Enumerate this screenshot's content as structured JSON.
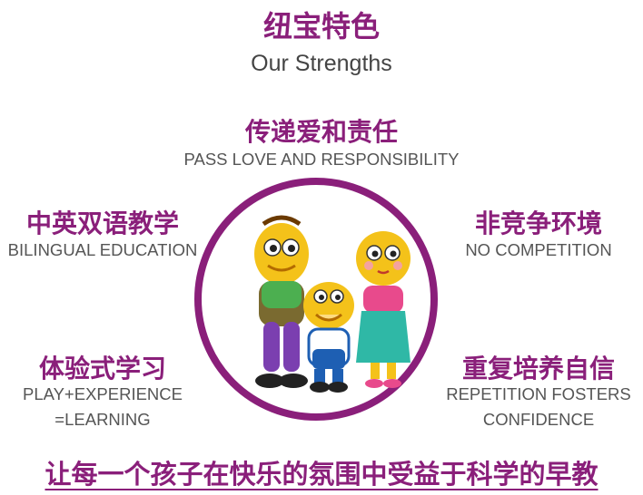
{
  "header": {
    "title_cn": "纽宝特色",
    "title_en": "Our Strengths"
  },
  "features": {
    "top": {
      "cn": "传递爱和责任",
      "en": "PASS LOVE AND RESPONSIBILITY"
    },
    "left_upper": {
      "cn": "中英双语教学",
      "en": "BILINGUAL EDUCATION"
    },
    "right_upper": {
      "cn": "非竞争环境",
      "en": "NO COMPETITION"
    },
    "left_lower": {
      "cn": "体验式学习",
      "en_line1": "PLAY+EXPERIENCE",
      "en_line2": "=LEARNING"
    },
    "right_lower": {
      "cn": "重复培养自信",
      "en_line1": "REPETITION FOSTERS",
      "en_line2": "CONFIDENCE"
    }
  },
  "slogan": "让每一个孩子在快乐的氛围中受益于科学的早教",
  "colors": {
    "accent": "#8a1f7a",
    "text_gray": "#555555"
  },
  "illustration": {
    "icon": "cartoon-family-icon"
  }
}
